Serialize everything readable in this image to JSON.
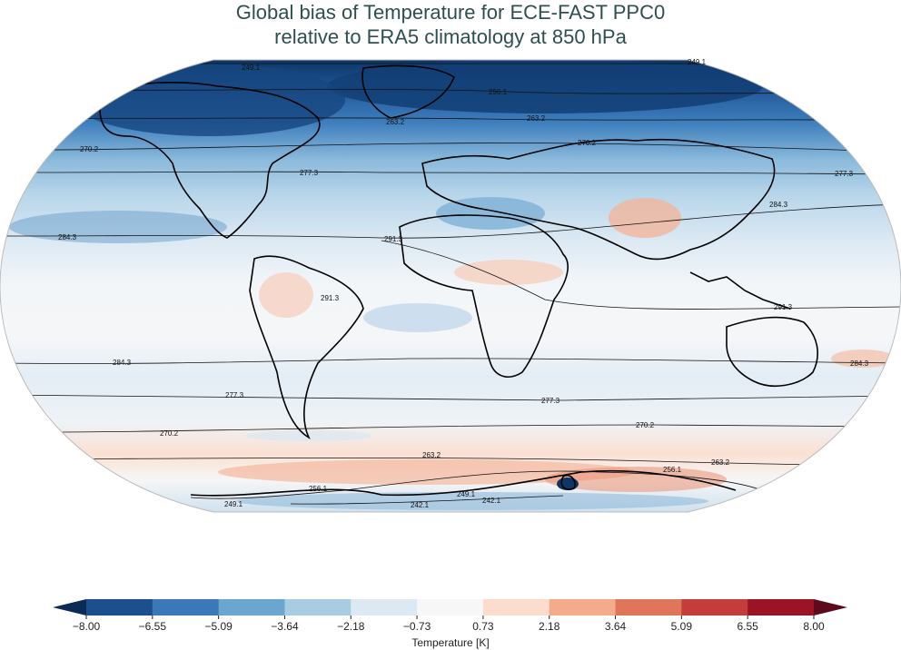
{
  "title": {
    "line1": "Global bias of Temperature for ECE-FAST PPC0",
    "line2": "relative to ERA5 climatology at 850 hPa"
  },
  "map": {
    "projection": "Robinson",
    "contour_labels": [
      "249.1",
      "256.1",
      "263.2",
      "270.2",
      "277.3",
      "284.3",
      "291.3",
      "242.1"
    ]
  },
  "colorbar": {
    "label": "Temperature [K]",
    "ticks": [
      "−8.00",
      "−6.55",
      "−5.09",
      "−3.64",
      "−2.18",
      "−0.73",
      "0.73",
      "2.18",
      "3.64",
      "5.09",
      "6.55",
      "8.00"
    ],
    "colors": [
      "#1d4f8f",
      "#3a78b8",
      "#6aa6cf",
      "#a8cde3",
      "#dde9f2",
      "#f7f7f7",
      "#fbdccd",
      "#f4ab8c",
      "#e07659",
      "#c43d3b",
      "#9a1426"
    ],
    "under_color": "#0b2a55",
    "over_color": "#5e0a1c"
  }
}
